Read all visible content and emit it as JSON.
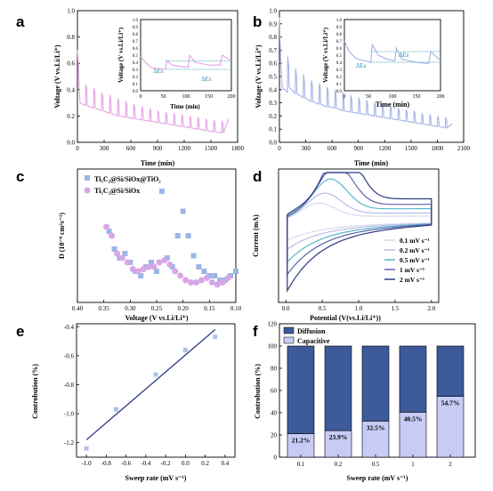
{
  "figure": {
    "panel_labels": [
      "a",
      "b",
      "c",
      "d",
      "e",
      "f"
    ]
  },
  "chart_data": [
    {
      "panel": "a",
      "type": "line",
      "xlabel": "Time (min)",
      "ylabel": "Voltage (V vs.Li/Li⁺)",
      "xlim": [
        0,
        1800
      ],
      "ylim": [
        0.0,
        1.0
      ],
      "xticks": [
        "0",
        "300",
        "600",
        "900",
        "1200",
        "1500",
        "1800"
      ],
      "yticks": [
        "0.0",
        "0.2",
        "0.4",
        "0.6",
        "0.8",
        "1.0"
      ],
      "color": "#e6a3e6",
      "x": [
        0,
        10,
        20,
        30,
        90,
        95,
        105,
        110,
        180,
        185,
        195,
        200,
        270,
        275,
        285,
        290,
        360,
        365,
        375,
        380,
        450,
        455,
        465,
        470,
        540,
        545,
        555,
        560,
        630,
        635,
        645,
        650,
        720,
        725,
        735,
        740,
        810,
        815,
        825,
        830,
        900,
        905,
        915,
        920,
        990,
        995,
        1005,
        1010,
        1080,
        1085,
        1095,
        1100,
        1170,
        1175,
        1185,
        1190,
        1260,
        1265,
        1275,
        1280,
        1350,
        1355,
        1365,
        1370,
        1440,
        1445,
        1455,
        1460,
        1530,
        1535,
        1545,
        1550,
        1620,
        1625,
        1635,
        1640,
        1700
      ],
      "y": [
        0.7,
        0.6,
        0.42,
        0.3,
        0.28,
        0.44,
        0.4,
        0.28,
        0.26,
        0.41,
        0.38,
        0.26,
        0.24,
        0.38,
        0.35,
        0.24,
        0.22,
        0.36,
        0.33,
        0.22,
        0.2,
        0.33,
        0.31,
        0.2,
        0.19,
        0.31,
        0.29,
        0.19,
        0.18,
        0.29,
        0.27,
        0.18,
        0.17,
        0.27,
        0.25,
        0.17,
        0.16,
        0.26,
        0.24,
        0.16,
        0.15,
        0.24,
        0.22,
        0.15,
        0.14,
        0.23,
        0.21,
        0.14,
        0.13,
        0.22,
        0.2,
        0.13,
        0.12,
        0.21,
        0.19,
        0.12,
        0.11,
        0.2,
        0.18,
        0.11,
        0.1,
        0.19,
        0.17,
        0.1,
        0.09,
        0.18,
        0.16,
        0.09,
        0.08,
        0.17,
        0.15,
        0.08,
        0.07,
        0.16,
        0.14,
        0.07,
        0.18
      ],
      "inset": {
        "xlabel": "Time (min)",
        "ylabel": "Voltage (V vs.Li/Li⁺)",
        "xlim": [
          0,
          200
        ],
        "ylim": [
          0.0,
          1.0
        ],
        "xticks": [
          "0",
          "50",
          "100",
          "150",
          "200"
        ],
        "yticks": [
          "0.0",
          "0.1",
          "0.2",
          "0.3",
          "0.4",
          "0.5",
          "0.6",
          "0.7",
          "0.8",
          "0.9",
          "1.0"
        ],
        "annotations": [
          "ΔEs",
          "ΔEs"
        ],
        "x": [
          0,
          10,
          25,
          55,
          58,
          70,
          90,
          105,
          108,
          120,
          150,
          175,
          180,
          200
        ],
        "y": [
          0.48,
          0.4,
          0.32,
          0.3,
          0.42,
          0.36,
          0.34,
          0.33,
          0.5,
          0.4,
          0.36,
          0.36,
          0.5,
          0.42
        ]
      }
    },
    {
      "panel": "b",
      "type": "line",
      "xlabel": "Time (min)",
      "ylabel": "Voltage (V vs.Li/Li⁺)",
      "xlim": [
        0,
        2100
      ],
      "ylim": [
        0.0,
        1.0
      ],
      "xticks": [
        "0",
        "300",
        "600",
        "900",
        "1200",
        "1500",
        "1800",
        "2100"
      ],
      "yticks": [
        "0.0",
        "0.1",
        "0.2",
        "0.3",
        "0.4",
        "0.5",
        "0.6",
        "0.7",
        "0.8",
        "0.9",
        "1.0"
      ],
      "color": "#a3b3e6",
      "x": [
        0,
        10,
        20,
        30,
        90,
        95,
        105,
        110,
        180,
        185,
        195,
        200,
        270,
        275,
        285,
        290,
        360,
        365,
        375,
        380,
        450,
        455,
        465,
        470,
        540,
        545,
        555,
        560,
        630,
        635,
        645,
        650,
        720,
        725,
        735,
        740,
        810,
        815,
        825,
        830,
        900,
        905,
        915,
        920,
        990,
        995,
        1005,
        1010,
        1080,
        1085,
        1095,
        1100,
        1170,
        1175,
        1185,
        1190,
        1260,
        1265,
        1275,
        1280,
        1350,
        1355,
        1365,
        1370,
        1440,
        1445,
        1455,
        1460,
        1530,
        1535,
        1545,
        1550,
        1620,
        1625,
        1635,
        1640,
        1710,
        1715,
        1725,
        1730,
        1800,
        1805,
        1815,
        1820,
        1890,
        1895,
        1905,
        1910,
        1970
      ],
      "y": [
        0.95,
        0.7,
        0.55,
        0.42,
        0.38,
        0.65,
        0.58,
        0.42,
        0.37,
        0.56,
        0.5,
        0.37,
        0.34,
        0.52,
        0.46,
        0.34,
        0.31,
        0.47,
        0.43,
        0.31,
        0.29,
        0.45,
        0.41,
        0.29,
        0.27,
        0.42,
        0.38,
        0.27,
        0.26,
        0.4,
        0.36,
        0.26,
        0.24,
        0.38,
        0.34,
        0.24,
        0.23,
        0.36,
        0.32,
        0.23,
        0.22,
        0.34,
        0.31,
        0.22,
        0.21,
        0.32,
        0.29,
        0.21,
        0.2,
        0.3,
        0.28,
        0.2,
        0.19,
        0.29,
        0.27,
        0.19,
        0.18,
        0.28,
        0.26,
        0.18,
        0.17,
        0.26,
        0.24,
        0.17,
        0.16,
        0.25,
        0.23,
        0.16,
        0.15,
        0.24,
        0.22,
        0.15,
        0.14,
        0.22,
        0.2,
        0.14,
        0.13,
        0.21,
        0.19,
        0.13,
        0.12,
        0.2,
        0.18,
        0.12,
        0.11,
        0.19,
        0.17,
        0.11,
        0.14
      ],
      "inset": {
        "xlabel": "Time (min)",
        "ylabel": "Voltage (V vs.Li/Li⁺)",
        "xlim": [
          0,
          200
        ],
        "ylim": [
          0.0,
          1.0
        ],
        "xticks": [
          "0",
          "50",
          "100",
          "150",
          "200"
        ],
        "yticks": [
          "0.0",
          "0.1",
          "0.2",
          "0.3",
          "0.4",
          "0.5",
          "0.6",
          "0.7",
          "0.8",
          "0.9",
          "1.0"
        ],
        "annotations": [
          "ΔEs",
          "ΔEs"
        ],
        "x": [
          0,
          10,
          25,
          55,
          58,
          70,
          90,
          105,
          108,
          120,
          150,
          175,
          180,
          200
        ],
        "y": [
          0.7,
          0.55,
          0.45,
          0.4,
          0.65,
          0.5,
          0.44,
          0.42,
          0.6,
          0.44,
          0.4,
          0.38,
          0.55,
          0.42
        ]
      }
    },
    {
      "panel": "c",
      "type": "scatter",
      "xlabel": "Voltage (V vs.Li/Li⁺)",
      "ylabel": "D (10⁻⁹ cm²s⁻¹)",
      "xlim": [
        0.4,
        0.1
      ],
      "xticks": [
        "0.40",
        "0.35",
        "0.30",
        "0.25",
        "0.20",
        "0.15",
        "0.10"
      ],
      "legend": [
        "Ti₃C₂@Si/SiOx@TiO₂",
        "Ti₃C₂@Si/SiOx"
      ],
      "series": [
        {
          "name": "Ti₃C₂@Si/SiOx@TiO₂",
          "marker": "square",
          "color": "#9db5e6",
          "x": [
            0.34,
            0.33,
            0.32,
            0.31,
            0.3,
            0.29,
            0.28,
            0.27,
            0.26,
            0.25,
            0.24,
            0.23,
            0.22,
            0.21,
            0.2,
            0.19,
            0.18,
            0.17,
            0.16,
            0.15,
            0.14,
            0.13,
            0.12,
            0.11,
            0.1
          ],
          "y": [
            1.6,
            1.2,
            1.0,
            1.1,
            0.9,
            0.7,
            0.6,
            0.8,
            0.9,
            0.7,
            2.5,
            1.0,
            0.8,
            1.5,
            2.05,
            1.5,
            1.05,
            0.8,
            0.7,
            0.6,
            0.6,
            0.5,
            0.5,
            0.6,
            0.7
          ]
        },
        {
          "name": "Ti₃C₂@Si/SiOx",
          "marker": "circle",
          "color": "#d9a6e6",
          "x": [
            0.345,
            0.335,
            0.325,
            0.315,
            0.305,
            0.295,
            0.285,
            0.275,
            0.265,
            0.255,
            0.245,
            0.235,
            0.225,
            0.215,
            0.205,
            0.195,
            0.185,
            0.175,
            0.165,
            0.155,
            0.145,
            0.135,
            0.125,
            0.115
          ],
          "y": [
            1.7,
            1.5,
            1.1,
            1.0,
            0.9,
            0.75,
            0.7,
            0.75,
            0.8,
            0.8,
            0.9,
            0.95,
            0.85,
            0.7,
            0.6,
            0.5,
            0.45,
            0.45,
            0.5,
            0.55,
            0.45,
            0.4,
            0.45,
            0.55
          ]
        }
      ]
    },
    {
      "panel": "d",
      "type": "line",
      "xlabel": "Potential (V(vs.Li/Li⁺))",
      "ylabel": "Current (mA)",
      "xlim": [
        -0.1,
        2.1
      ],
      "ylim": [
        -0.45,
        0.3
      ],
      "xticks": [
        "0.0",
        "0.5",
        "1.0",
        "1.5",
        "2.0"
      ],
      "legend": [
        "0.1 mV s⁻¹",
        "0.2 mV s⁻¹",
        "0.5 mV s⁻¹",
        "1 mV s⁻¹",
        "2 mV s⁻¹"
      ],
      "series": [
        {
          "name": "0.1 mV s⁻¹",
          "color": "#d9d9f0",
          "amplitude": 0.1
        },
        {
          "name": "0.2 mV s⁻¹",
          "color": "#b7bde6",
          "amplitude": 0.15
        },
        {
          "name": "0.5 mV s⁻¹",
          "color": "#5bb3c7",
          "amplitude": 0.22
        },
        {
          "name": "1 mV s⁻¹",
          "color": "#5c63a9",
          "amplitude": 0.29
        },
        {
          "name": "2 mV s⁻¹",
          "color": "#2e3a82",
          "amplitude": 0.38
        }
      ]
    },
    {
      "panel": "e",
      "type": "scatter",
      "xlabel": "Sweep rate (mV s⁻¹)",
      "ylabel": "Controbution (%)",
      "xlim": [
        -1.1,
        0.5
      ],
      "ylim": [
        -1.3,
        -0.38
      ],
      "xticks": [
        "-1.0",
        "-0.8",
        "-0.6",
        "-0.4",
        "-0.2",
        "0.0",
        "0.2",
        "0.4"
      ],
      "yticks": [
        "-0.4",
        "-0.6",
        "-0.8",
        "-1.0",
        "-1.2"
      ],
      "x": [
        -1.0,
        -0.7,
        -0.3,
        0.0,
        0.3
      ],
      "y": [
        -1.24,
        -0.97,
        -0.73,
        -0.56,
        -0.47
      ],
      "fit": {
        "x": [
          -1.0,
          0.3
        ],
        "y": [
          -1.18,
          -0.42
        ]
      }
    },
    {
      "panel": "f",
      "type": "bar",
      "xlabel": "Sweep rate (mV s⁻¹)",
      "ylabel": "Controbution (%)",
      "ylim": [
        0,
        120
      ],
      "yticks": [
        "0",
        "20",
        "40",
        "60",
        "80",
        "100",
        "120"
      ],
      "categories": [
        "0.1",
        "0.2",
        "0.5",
        "1",
        "2"
      ],
      "legend": [
        "Diffusion",
        "Capacitive"
      ],
      "series": [
        {
          "name": "Capacitive",
          "color": "#c7cbf5",
          "values": [
            21.2,
            23.9,
            32.5,
            40.5,
            54.7
          ]
        },
        {
          "name": "Diffusion",
          "color": "#3d5a9a",
          "values": [
            78.8,
            76.1,
            67.5,
            59.5,
            45.3
          ]
        }
      ],
      "data_labels": [
        "21.2%",
        "23.9%",
        "32.5%",
        "40.5%",
        "54.7%"
      ]
    }
  ]
}
